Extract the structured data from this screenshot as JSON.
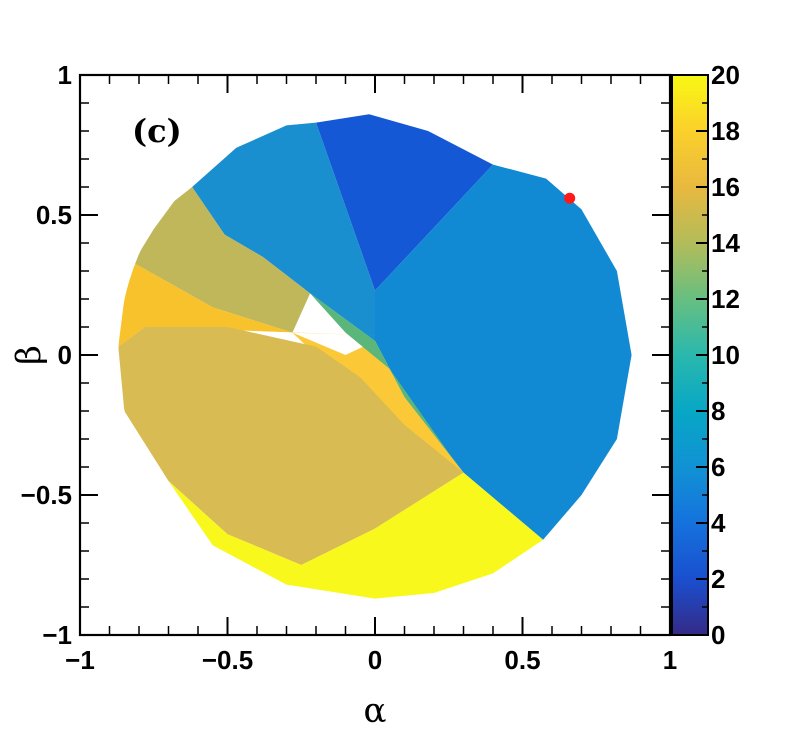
{
  "chart_data": {
    "type": "heatmap",
    "panel_label": "(c)",
    "xlabel": "α",
    "ylabel": "β",
    "xlim": [
      -1,
      1
    ],
    "ylim": [
      -1,
      1
    ],
    "x_tick_labels": [
      "−1",
      "−0.5",
      "0",
      "0.5",
      "1"
    ],
    "x_tick_values": [
      -1,
      -0.5,
      0,
      0.5,
      1
    ],
    "y_tick_labels": [
      "−1",
      "−0.5",
      "0",
      "0.5",
      "1"
    ],
    "y_tick_values": [
      -1,
      -0.5,
      0,
      0.5,
      1
    ],
    "colorbar": {
      "range": [
        0,
        20
      ],
      "tick_labels": [
        "0",
        "2",
        "4",
        "6",
        "8",
        "10",
        "12",
        "14",
        "16",
        "18",
        "20"
      ],
      "tick_values": [
        0,
        2,
        4,
        6,
        8,
        10,
        12,
        14,
        16,
        18,
        20
      ]
    },
    "domain": {
      "shape": "disk",
      "radius": 0.87
    },
    "regions": [
      {
        "name": "top-blue",
        "value": 3,
        "color": "#1558d6",
        "polygon": [
          [
            -0.2,
            0.83
          ],
          [
            -0.02,
            0.86
          ],
          [
            0.18,
            0.8
          ],
          [
            0.4,
            0.68
          ],
          [
            0.0,
            0.23
          ]
        ]
      },
      {
        "name": "upper-left",
        "value": 5.5,
        "color": "#1a8fcf",
        "polygon": [
          [
            -0.2,
            0.83
          ],
          [
            0.0,
            0.23
          ],
          [
            0.0,
            0.05
          ],
          [
            -0.22,
            0.22
          ],
          [
            -0.38,
            0.35
          ],
          [
            -0.51,
            0.43
          ],
          [
            -0.62,
            0.6
          ],
          [
            -0.47,
            0.74
          ],
          [
            -0.3,
            0.82
          ]
        ]
      },
      {
        "name": "right-large",
        "value": 5.5,
        "color": "#128ad3",
        "polygon": [
          [
            0.0,
            0.23
          ],
          [
            0.4,
            0.68
          ],
          [
            0.58,
            0.63
          ],
          [
            0.7,
            0.52
          ],
          [
            0.82,
            0.3
          ],
          [
            0.87,
            0.0
          ],
          [
            0.82,
            -0.3
          ],
          [
            0.7,
            -0.5
          ],
          [
            0.57,
            -0.66
          ],
          [
            0.3,
            -0.42
          ],
          [
            0.1,
            -0.15
          ],
          [
            0.0,
            0.05
          ]
        ]
      },
      {
        "name": "upper-left-olive",
        "value": 14.5,
        "color": "#c0b65a",
        "polygon": [
          [
            -0.62,
            0.6
          ],
          [
            -0.51,
            0.43
          ],
          [
            -0.38,
            0.35
          ],
          [
            -0.22,
            0.22
          ],
          [
            -0.28,
            0.08
          ],
          [
            -0.55,
            0.17
          ],
          [
            -0.82,
            0.33
          ],
          [
            -0.75,
            0.45
          ],
          [
            -0.68,
            0.55
          ]
        ]
      },
      {
        "name": "left-yellow-sliver",
        "value": 17.5,
        "color": "#f7c22c",
        "polygon": [
          [
            -0.82,
            0.33
          ],
          [
            -0.55,
            0.17
          ],
          [
            -0.28,
            0.08
          ],
          [
            0.0,
            0.07
          ],
          [
            -0.78,
            0.1
          ],
          [
            -0.87,
            0.03
          ],
          [
            -0.85,
            0.2
          ]
        ]
      },
      {
        "name": "center-orange",
        "value": 17,
        "color": "#fbc837",
        "polygon": [
          [
            -0.28,
            0.08
          ],
          [
            -0.1,
            0.0
          ],
          [
            0.0,
            0.05
          ],
          [
            0.1,
            -0.15
          ],
          [
            0.3,
            -0.42
          ],
          [
            0.1,
            -0.3
          ],
          [
            -0.1,
            -0.1
          ]
        ]
      },
      {
        "name": "big-tan",
        "value": 15.5,
        "color": "#d8bb52",
        "polygon": [
          [
            -0.87,
            0.03
          ],
          [
            -0.78,
            0.1
          ],
          [
            -0.5,
            0.1
          ],
          [
            -0.2,
            0.03
          ],
          [
            -0.05,
            -0.08
          ],
          [
            0.1,
            -0.25
          ],
          [
            0.3,
            -0.42
          ],
          [
            0.0,
            -0.62
          ],
          [
            -0.25,
            -0.75
          ],
          [
            -0.5,
            -0.64
          ],
          [
            -0.7,
            -0.45
          ],
          [
            -0.85,
            -0.2
          ]
        ]
      },
      {
        "name": "bottom-yellow",
        "value": 20,
        "color": "#f8f81c",
        "polygon": [
          [
            -0.7,
            -0.45
          ],
          [
            -0.5,
            -0.64
          ],
          [
            -0.25,
            -0.75
          ],
          [
            0.0,
            -0.62
          ],
          [
            0.3,
            -0.42
          ],
          [
            0.57,
            -0.66
          ],
          [
            0.4,
            -0.78
          ],
          [
            0.2,
            -0.85
          ],
          [
            0.0,
            -0.87
          ],
          [
            -0.3,
            -0.82
          ],
          [
            -0.55,
            -0.68
          ]
        ]
      },
      {
        "name": "diagonal-green",
        "value": 11,
        "color": "#5bb67a",
        "polygon": [
          [
            -0.22,
            0.22
          ],
          [
            0.0,
            0.05
          ],
          [
            0.1,
            -0.15
          ],
          [
            0.3,
            -0.42
          ],
          [
            0.25,
            -0.35
          ],
          [
            0.05,
            -0.05
          ],
          [
            -0.1,
            0.08
          ]
        ]
      }
    ],
    "marker": {
      "x": 0.66,
      "y": 0.56,
      "color": "#ff1a1a"
    }
  }
}
